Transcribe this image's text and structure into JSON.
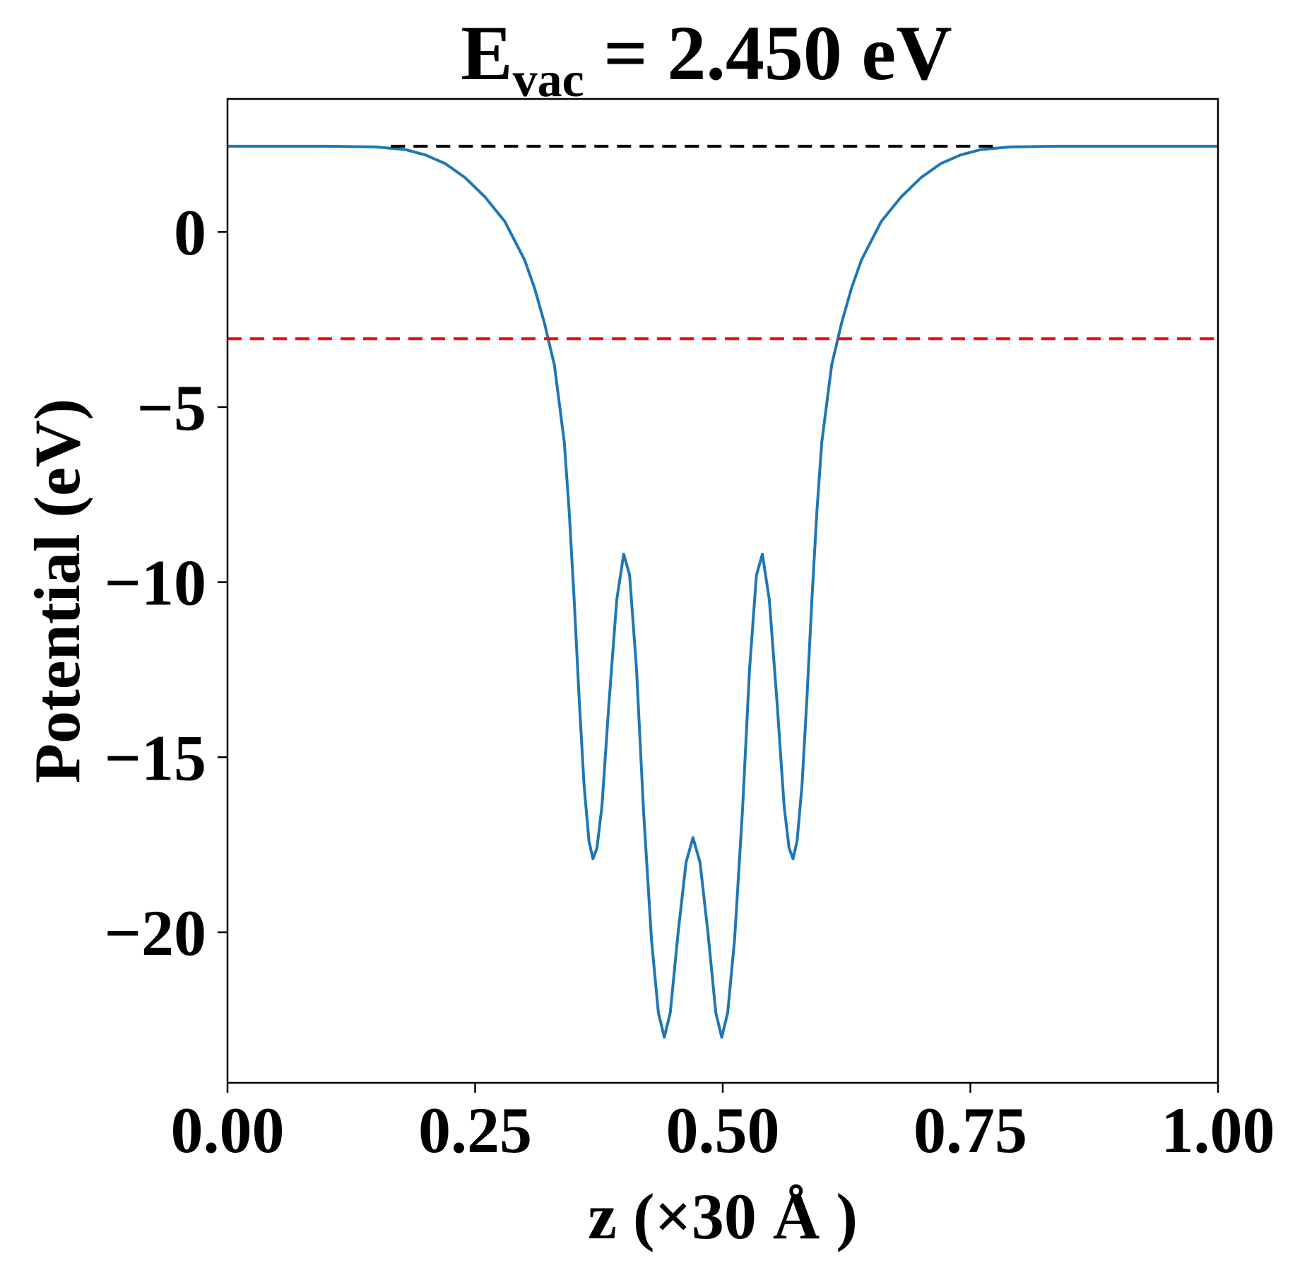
{
  "chart_data": {
    "type": "line",
    "title": {
      "main": "E",
      "subscript": "vac",
      "rest": " = 2.450 eV"
    },
    "xlabel": "z (×30 Å )",
    "ylabel": "Potential (eV)",
    "xlim": [
      0.0,
      1.0
    ],
    "ylim": [
      -24.3,
      3.8
    ],
    "xticks": [
      0.0,
      0.25,
      0.5,
      0.75,
      1.0
    ],
    "xtick_labels": [
      "0.00",
      "0.25",
      "0.50",
      "0.75",
      "1.00"
    ],
    "yticks": [
      0,
      -5,
      -10,
      -15,
      -20
    ],
    "ytick_labels": [
      "0",
      "−5",
      "−10",
      "−15",
      "−20"
    ],
    "grid": false,
    "series": [
      {
        "style": "solid",
        "color": "#1f77b4",
        "points": [
          [
            0.0,
            2.45
          ],
          [
            0.1,
            2.45
          ],
          [
            0.15,
            2.43
          ],
          [
            0.18,
            2.35
          ],
          [
            0.2,
            2.2
          ],
          [
            0.22,
            1.95
          ],
          [
            0.24,
            1.55
          ],
          [
            0.26,
            1.0
          ],
          [
            0.28,
            0.3
          ],
          [
            0.3,
            -0.8
          ],
          [
            0.31,
            -1.6
          ],
          [
            0.32,
            -2.6
          ],
          [
            0.33,
            -3.8
          ],
          [
            0.34,
            -6.0
          ],
          [
            0.345,
            -8.0
          ],
          [
            0.35,
            -10.5
          ],
          [
            0.355,
            -13.3
          ],
          [
            0.36,
            -15.8
          ],
          [
            0.365,
            -17.4
          ],
          [
            0.369,
            -17.9
          ],
          [
            0.373,
            -17.6
          ],
          [
            0.378,
            -16.4
          ],
          [
            0.385,
            -13.5
          ],
          [
            0.393,
            -10.5
          ],
          [
            0.4,
            -9.2
          ],
          [
            0.406,
            -9.8
          ],
          [
            0.413,
            -12.5
          ],
          [
            0.42,
            -16.5
          ],
          [
            0.428,
            -20.2
          ],
          [
            0.435,
            -22.3
          ],
          [
            0.441,
            -23.0
          ],
          [
            0.447,
            -22.3
          ],
          [
            0.455,
            -20.0
          ],
          [
            0.463,
            -18.0
          ],
          [
            0.47,
            -17.3
          ],
          [
            0.477,
            -18.0
          ],
          [
            0.485,
            -20.0
          ],
          [
            0.493,
            -22.3
          ],
          [
            0.499,
            -23.0
          ],
          [
            0.505,
            -22.3
          ],
          [
            0.512,
            -20.2
          ],
          [
            0.52,
            -16.5
          ],
          [
            0.527,
            -12.5
          ],
          [
            0.534,
            -9.8
          ],
          [
            0.54,
            -9.2
          ],
          [
            0.547,
            -10.5
          ],
          [
            0.555,
            -13.5
          ],
          [
            0.562,
            -16.4
          ],
          [
            0.567,
            -17.6
          ],
          [
            0.571,
            -17.9
          ],
          [
            0.575,
            -17.4
          ],
          [
            0.58,
            -15.8
          ],
          [
            0.585,
            -13.3
          ],
          [
            0.59,
            -10.5
          ],
          [
            0.595,
            -8.0
          ],
          [
            0.6,
            -6.0
          ],
          [
            0.61,
            -3.8
          ],
          [
            0.62,
            -2.6
          ],
          [
            0.63,
            -1.6
          ],
          [
            0.64,
            -0.8
          ],
          [
            0.66,
            0.3
          ],
          [
            0.68,
            1.0
          ],
          [
            0.7,
            1.55
          ],
          [
            0.72,
            1.95
          ],
          [
            0.74,
            2.2
          ],
          [
            0.76,
            2.35
          ],
          [
            0.79,
            2.43
          ],
          [
            0.84,
            2.45
          ],
          [
            1.0,
            2.45
          ]
        ]
      },
      {
        "style": "dashed",
        "color": "#000000",
        "points": [
          [
            0.165,
            2.45
          ],
          [
            0.78,
            2.45
          ]
        ]
      },
      {
        "style": "dashed",
        "color": "#ff0000",
        "points": [
          [
            0.0,
            -3.05
          ],
          [
            1.0,
            -3.05
          ]
        ]
      }
    ]
  }
}
